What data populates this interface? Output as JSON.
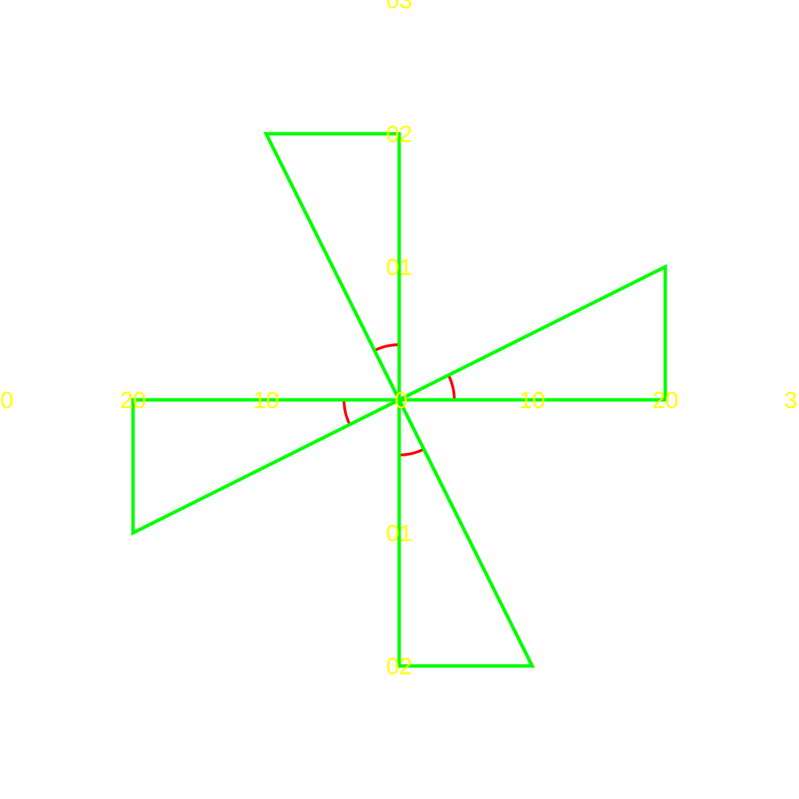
{
  "colors": {
    "triangle_stroke": "#00ff00",
    "angle_arc": "#ff0000",
    "tick_label": "#ffff00",
    "background": "#ffffff"
  },
  "tick_labels": {
    "horizontal": [
      "0",
      "20",
      "10",
      "0",
      "10",
      "20",
      "3"
    ],
    "vertical": [
      "03",
      "02",
      "01",
      "01",
      "02"
    ]
  },
  "triangles": [
    {
      "name": "triangle-upper",
      "vertices": [
        [
          0,
          0
        ],
        [
          0,
          20
        ],
        [
          -10,
          20
        ]
      ]
    },
    {
      "name": "triangle-right",
      "vertices": [
        [
          0,
          0
        ],
        [
          20,
          0
        ],
        [
          20,
          10
        ]
      ]
    },
    {
      "name": "triangle-lower",
      "vertices": [
        [
          0,
          0
        ],
        [
          0,
          -20
        ],
        [
          10,
          -20
        ]
      ]
    },
    {
      "name": "triangle-left",
      "vertices": [
        [
          0,
          0
        ],
        [
          -20,
          0
        ],
        [
          -20,
          -10
        ]
      ]
    }
  ]
}
